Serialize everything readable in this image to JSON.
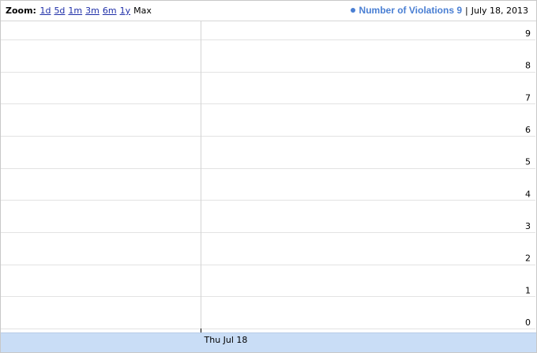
{
  "toolbar": {
    "zoom_label": "Zoom:",
    "zoom_options": [
      "1d",
      "5d",
      "1m",
      "3m",
      "6m",
      "1y"
    ],
    "zoom_current": "Max"
  },
  "legend": {
    "series_text": "Number of Violations 9",
    "date_text": "July 18, 2013",
    "separator": "|"
  },
  "colors": {
    "series": "#4a7fd3",
    "grid": "#e3e3e3",
    "timebar": "#c9ddf6"
  },
  "chart_data": {
    "type": "line",
    "series": [
      {
        "name": "Number of Violations",
        "x": [
          "2013-07-18"
        ],
        "values": [
          9
        ]
      }
    ],
    "y_ticks": [
      0,
      1,
      2,
      3,
      4,
      5,
      6,
      7,
      8,
      9
    ],
    "ylim": [
      0,
      9
    ],
    "x_tick_labels": [
      "Thu Jul 18"
    ],
    "grid": true,
    "legend_position": "top-right"
  }
}
